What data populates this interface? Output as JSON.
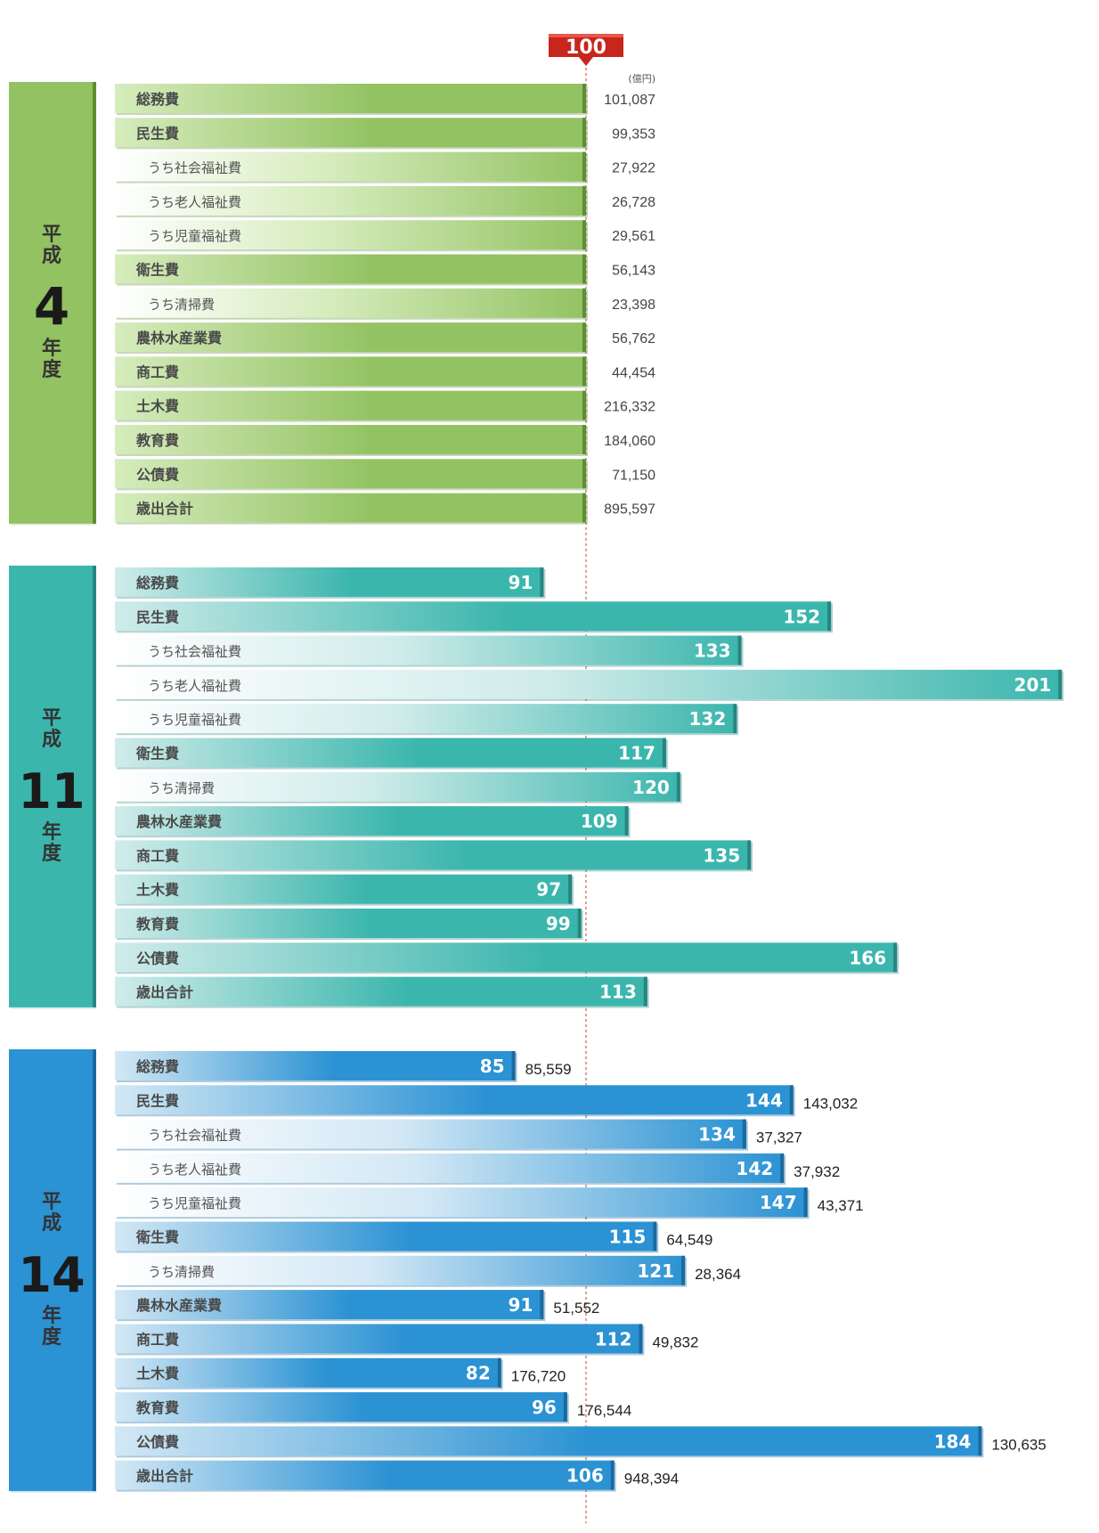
{
  "chart_data": {
    "type": "bar",
    "orientation": "horizontal",
    "unit": "(億円)",
    "baseline_marker": "100",
    "categories": [
      "総務費",
      "民生費",
      "うち社会福祉費",
      "うち老人福祉費",
      "うち児童福祉費",
      "衛生費",
      "うち清掃費",
      "農林水産業費",
      "商工費",
      "土木費",
      "教育費",
      "公債費",
      "歳出合計"
    ],
    "sub_categories": [
      2,
      3,
      4,
      6
    ],
    "series": [
      {
        "year_prefix": "平成",
        "year_num": "4",
        "year_suffix": "年度",
        "fill": "#93c262",
        "fill_light": "#d6ecbd",
        "side": "#5d8d35",
        "values": [
          100,
          100,
          100,
          100,
          100,
          100,
          100,
          100,
          100,
          100,
          100,
          100,
          100
        ],
        "show_index": false,
        "amounts": [
          "101,087",
          "99,353",
          "27,922",
          "26,728",
          "29,561",
          "56,143",
          "23,398",
          "56,762",
          "44,454",
          "216,332",
          "184,060",
          "71,150",
          "895,597"
        ]
      },
      {
        "year_prefix": "平成",
        "year_num": "11",
        "year_suffix": "年度",
        "fill": "#3bb6ad",
        "fill_light": "#d0ecea",
        "side": "#27857f",
        "values": [
          91,
          152,
          133,
          201,
          132,
          117,
          120,
          109,
          135,
          97,
          99,
          166,
          113
        ],
        "show_index": true,
        "amounts": []
      },
      {
        "year_prefix": "平成",
        "year_num": "14",
        "year_suffix": "年度",
        "fill": "#2b92d3",
        "fill_light": "#d3e8f5",
        "side": "#1a6aa0",
        "values": [
          85,
          144,
          134,
          142,
          147,
          115,
          121,
          91,
          112,
          82,
          96,
          184,
          106
        ],
        "show_index": true,
        "amounts": [
          "85,559",
          "143,032",
          "37,327",
          "37,932",
          "43,371",
          "64,549",
          "28,364",
          "51,552",
          "49,832",
          "176,720",
          "176,544",
          "130,635",
          "948,394"
        ]
      }
    ]
  }
}
